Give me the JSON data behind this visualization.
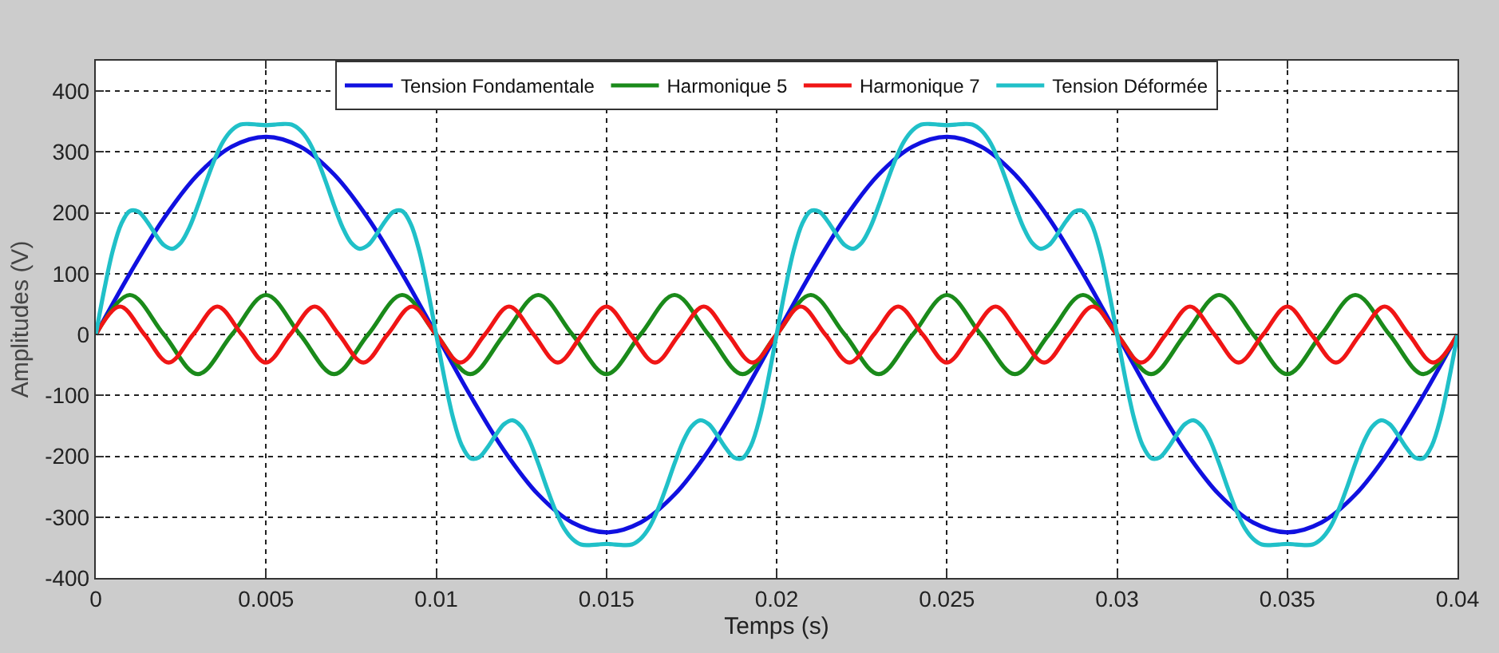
{
  "chart_data": {
    "type": "line",
    "xlabel": "Temps (s)",
    "ylabel": "Amplitudes (V)",
    "xlim": [
      0,
      0.04
    ],
    "ylim": [
      -400,
      450
    ],
    "xticks": [
      0,
      0.005,
      0.01,
      0.015,
      0.02,
      0.025,
      0.03,
      0.035,
      0.04
    ],
    "yticks": [
      -400,
      -300,
      -200,
      -100,
      0,
      100,
      200,
      300,
      400
    ],
    "grid": true,
    "legend": "top",
    "marker": "none",
    "line_style": "solid",
    "series": [
      {
        "name": "Tension Fondamentale",
        "color": "#1010e0",
        "x": [
          0,
          0.001,
          0.002,
          0.003,
          0.004,
          0.005,
          0.006,
          0.007,
          0.008,
          0.009,
          0.01,
          0.011,
          0.012,
          0.013,
          0.014,
          0.015,
          0.016,
          0.017,
          0.018,
          0.019,
          0.02,
          0.021,
          0.022,
          0.023,
          0.024,
          0.025,
          0.026,
          0.027,
          0.028,
          0.029,
          0.03,
          0.031,
          0.032,
          0.033,
          0.034,
          0.035,
          0.036,
          0.037,
          0.038,
          0.039,
          0.04
        ],
        "values": [
          0,
          100,
          191,
          263,
          309,
          325,
          309,
          263,
          191,
          100,
          0,
          -100,
          -191,
          -263,
          -309,
          -325,
          -309,
          -263,
          -191,
          -100,
          0,
          100,
          191,
          263,
          309,
          325,
          309,
          263,
          191,
          100,
          0,
          -100,
          -191,
          -263,
          -309,
          -325,
          -309,
          -263,
          -191,
          -100,
          0
        ]
      },
      {
        "name": "Harmonique 5",
        "color": "#1a8a1a",
        "x": [
          0,
          0.001,
          0.002,
          0.003,
          0.004,
          0.005,
          0.006,
          0.007,
          0.008,
          0.009,
          0.01,
          0.011,
          0.012,
          0.013,
          0.014,
          0.015,
          0.016,
          0.017,
          0.018,
          0.019,
          0.02,
          0.021,
          0.022,
          0.023,
          0.024,
          0.025,
          0.026,
          0.027,
          0.028,
          0.029,
          0.03,
          0.031,
          0.032,
          0.033,
          0.034,
          0.035,
          0.036,
          0.037,
          0.038,
          0.039,
          0.04
        ],
        "values": [
          0,
          65,
          0,
          -65,
          0,
          65,
          0,
          -65,
          0,
          65,
          0,
          -65,
          0,
          65,
          0,
          -65,
          0,
          65,
          0,
          -65,
          0,
          65,
          0,
          -65,
          0,
          65,
          0,
          -65,
          0,
          65,
          0,
          -65,
          0,
          65,
          0,
          -65,
          0,
          65,
          0,
          -65,
          0
        ]
      },
      {
        "name": "Harmonique 7",
        "color": "#f01515",
        "x": [
          0,
          0.00071,
          0.00143,
          0.00214,
          0.00286,
          0.00357,
          0.00429,
          0.005,
          0.00571,
          0.00643,
          0.00714,
          0.00786,
          0.00857,
          0.00929,
          0.01,
          0.01071,
          0.01143,
          0.01214,
          0.01286,
          0.01357,
          0.01429,
          0.015,
          0.01571,
          0.01643,
          0.01714,
          0.01786,
          0.01857,
          0.01929,
          0.02,
          0.02071,
          0.02143,
          0.02214,
          0.02286,
          0.02357,
          0.02429,
          0.025,
          0.02571,
          0.02643,
          0.02714,
          0.02786,
          0.02857,
          0.02929,
          0.03,
          0.03071,
          0.03143,
          0.03214,
          0.03286,
          0.03357,
          0.03429,
          0.035,
          0.03571,
          0.03643,
          0.03714,
          0.03786,
          0.03857,
          0.03929,
          0.04
        ],
        "values": [
          0,
          46,
          0,
          -46,
          0,
          46,
          0,
          -46,
          0,
          46,
          0,
          -46,
          0,
          46,
          0,
          -46,
          0,
          46,
          0,
          -46,
          0,
          46,
          0,
          -46,
          0,
          46,
          0,
          -46,
          0,
          46,
          0,
          -46,
          0,
          46,
          0,
          -46,
          0,
          46,
          0,
          -46,
          0,
          46,
          0,
          -46,
          0,
          46,
          0,
          -46,
          0,
          46,
          0,
          -46,
          0,
          46,
          0,
          -46,
          0
        ]
      },
      {
        "name": "Tension Déformée",
        "color": "#20c0c8",
        "x": [
          0,
          0.00025,
          0.0005,
          0.00075,
          0.001,
          0.00125,
          0.0015,
          0.00175,
          0.002,
          0.00225,
          0.0025,
          0.00275,
          0.003,
          0.00325,
          0.0035,
          0.00375,
          0.004,
          0.00425,
          0.0045,
          0.00475,
          0.005,
          0.00525,
          0.0055,
          0.00575,
          0.006,
          0.00625,
          0.0065,
          0.00675,
          0.007,
          0.00725,
          0.0075,
          0.00775,
          0.008,
          0.00825,
          0.0085,
          0.00875,
          0.009,
          0.00925,
          0.0095,
          0.00975,
          0.01,
          0.01025,
          0.0105,
          0.01075,
          0.011,
          0.01125,
          0.0115,
          0.01175,
          0.012,
          0.01225,
          0.0125,
          0.01275,
          0.013,
          0.01325,
          0.0135,
          0.01375,
          0.014,
          0.01425,
          0.0145,
          0.01475,
          0.015,
          0.01525,
          0.0155,
          0.01575,
          0.016,
          0.01625,
          0.0165,
          0.01675,
          0.017,
          0.01725,
          0.0175,
          0.01775,
          0.018,
          0.01825,
          0.0185,
          0.01875,
          0.019,
          0.01925,
          0.0195,
          0.01975,
          0.02,
          0.02025,
          0.0205,
          0.02075,
          0.021,
          0.02125,
          0.0215,
          0.02175,
          0.022,
          0.02225,
          0.0225,
          0.02275,
          0.023,
          0.02325,
          0.0235,
          0.02375,
          0.024,
          0.02425,
          0.0245,
          0.02475,
          0.025,
          0.02525,
          0.0255,
          0.02575,
          0.026,
          0.02625,
          0.0265,
          0.02675,
          0.027,
          0.02725,
          0.0275,
          0.02775,
          0.028,
          0.02825,
          0.0285,
          0.02875,
          0.029,
          0.02925,
          0.0295,
          0.02975,
          0.03,
          0.03025,
          0.0305,
          0.03075,
          0.031,
          0.03125,
          0.0315,
          0.03175,
          0.032,
          0.03225,
          0.0325,
          0.03275,
          0.033,
          0.03325,
          0.0335,
          0.03375,
          0.034,
          0.03425,
          0.0345,
          0.03475,
          0.035,
          0.03525,
          0.0355,
          0.03575,
          0.036,
          0.03625,
          0.0365,
          0.03675,
          0.037,
          0.03725,
          0.0375,
          0.03775,
          0.038,
          0.03825,
          0.0385,
          0.03875,
          0.039,
          0.03925,
          0.0395,
          0.03975,
          0.04
        ],
        "values": [
          0,
          74,
          138,
          182,
          203,
          202,
          186,
          165,
          147,
          141,
          151,
          176,
          212,
          252,
          289,
          318,
          336,
          345,
          346,
          345,
          344,
          345,
          346,
          345,
          336,
          318,
          289,
          252,
          212,
          176,
          151,
          141,
          147,
          165,
          186,
          202,
          203,
          182,
          138,
          74,
          0,
          -74,
          -138,
          -182,
          -203,
          -202,
          -186,
          -165,
          -147,
          -141,
          -151,
          -176,
          -212,
          -252,
          -289,
          -318,
          -336,
          -345,
          -346,
          -345,
          -344,
          -345,
          -346,
          -345,
          -336,
          -318,
          -289,
          -252,
          -212,
          -176,
          -151,
          -141,
          -147,
          -165,
          -186,
          -202,
          -203,
          -182,
          -138,
          -74,
          0,
          74,
          138,
          182,
          203,
          202,
          186,
          165,
          147,
          141,
          151,
          176,
          212,
          252,
          289,
          318,
          336,
          345,
          346,
          345,
          344,
          345,
          346,
          345,
          336,
          318,
          289,
          252,
          212,
          176,
          151,
          141,
          147,
          165,
          186,
          202,
          203,
          182,
          138,
          74,
          0,
          -74,
          -138,
          -182,
          -203,
          -202,
          -186,
          -165,
          -147,
          -141,
          -151,
          -176,
          -212,
          -252,
          -289,
          -318,
          -336,
          -345,
          -346,
          -345,
          -344,
          -345,
          -346,
          -345,
          -336,
          -318,
          -289,
          -252,
          -212,
          -176,
          -151,
          -141,
          -147,
          -165,
          -186,
          -202,
          -203,
          -182,
          -138,
          -74,
          0
        ]
      }
    ]
  }
}
